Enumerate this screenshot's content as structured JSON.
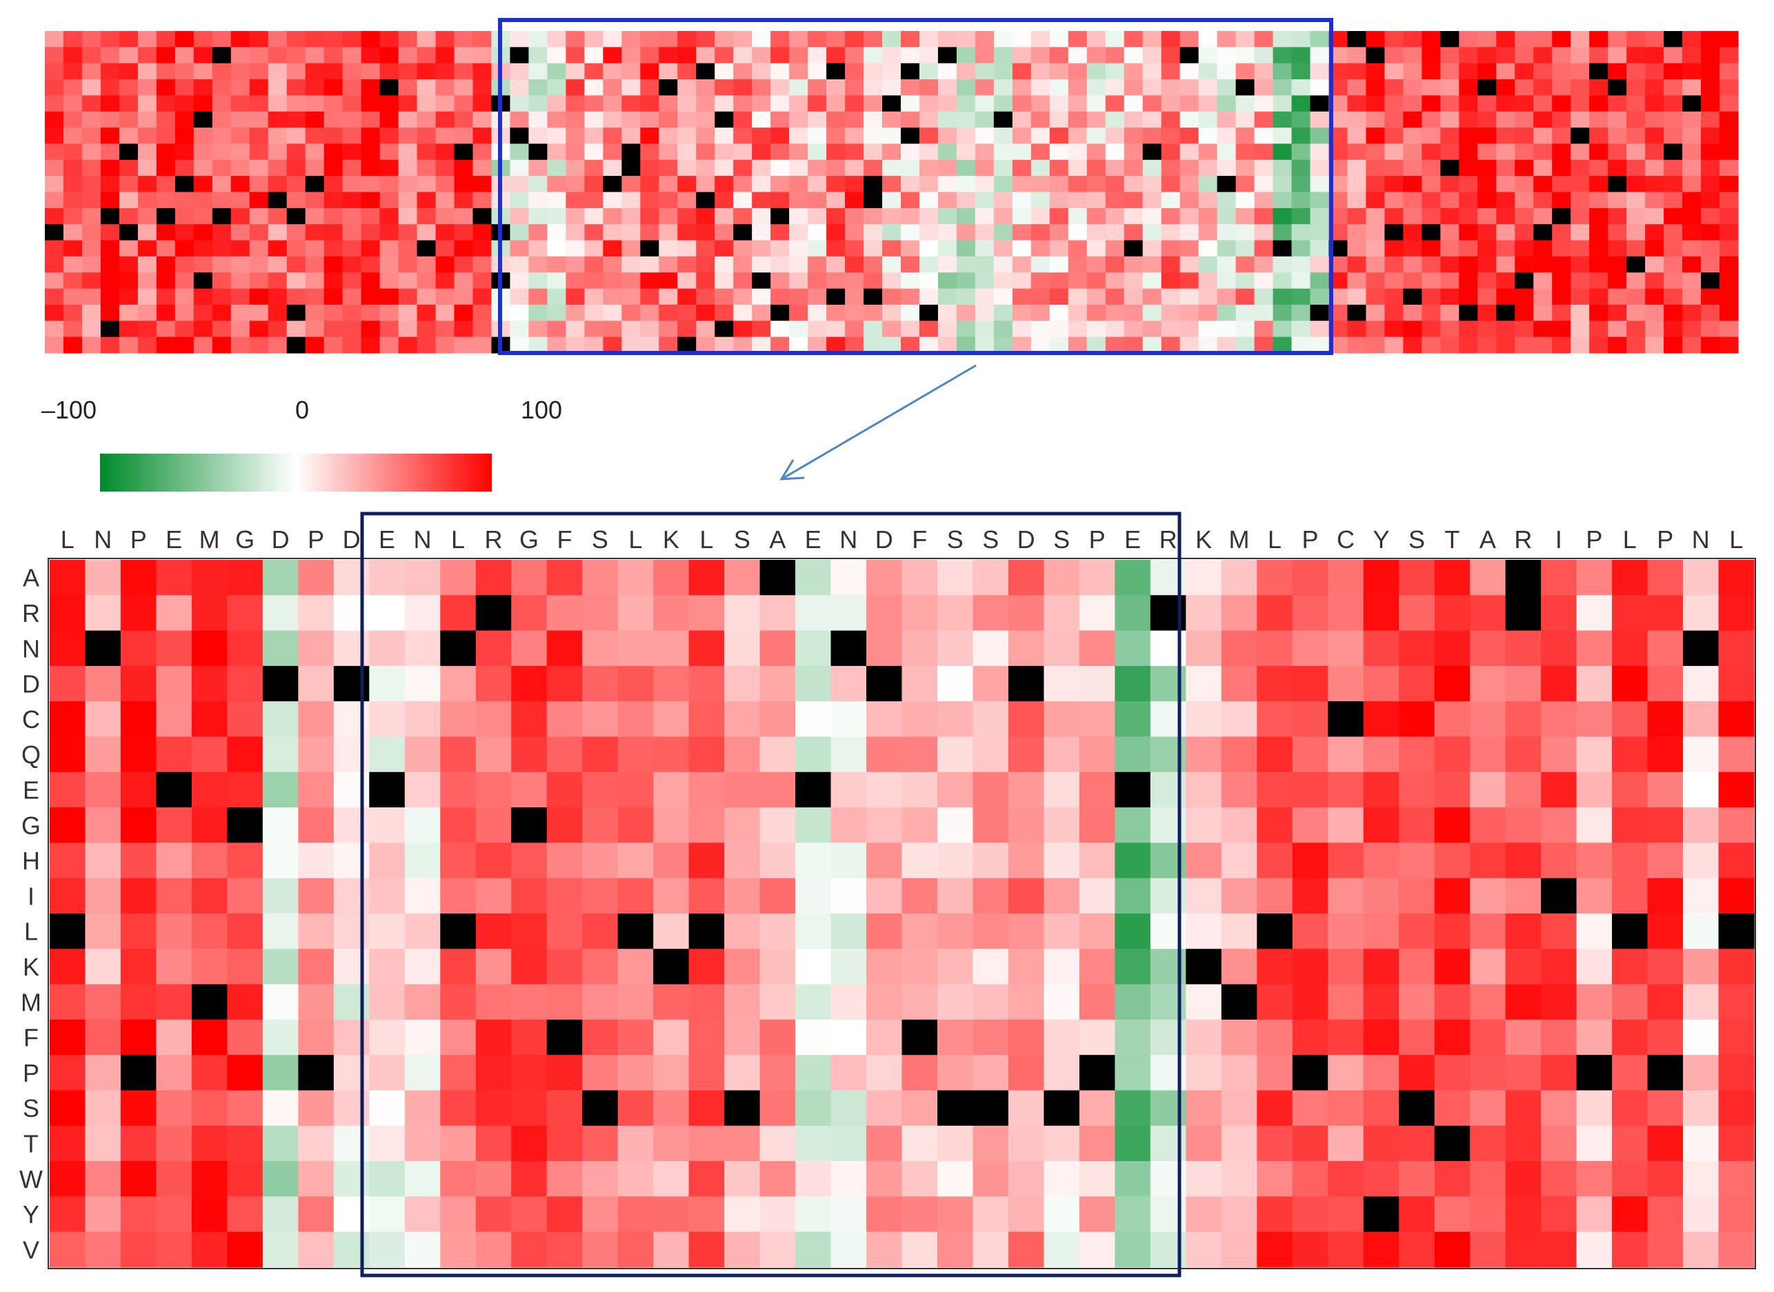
{
  "chart_data": {
    "type": "heatmap",
    "title": "",
    "xlabel": "",
    "ylabel": "",
    "color_scale": {
      "ticks": [
        "–100",
        "0",
        "100"
      ],
      "range": [
        -100,
        100
      ],
      "colors": [
        "#008a2a",
        "#ffffff",
        "#ff0000"
      ],
      "missing_color": "#000000"
    },
    "overview": {
      "rows": 20,
      "columns": 91,
      "highlight_column_range": [
        24,
        68
      ],
      "highlight_color": "#1a2fd6"
    },
    "zoom_arrow_color": "#4a86c8",
    "detail": {
      "x_tick_labels": [
        "L",
        "N",
        "P",
        "E",
        "M",
        "G",
        "D",
        "P",
        "D",
        "E",
        "N",
        "L",
        "R",
        "G",
        "F",
        "S",
        "L",
        "K",
        "L",
        "S",
        "A",
        "E",
        "N",
        "D",
        "F",
        "S",
        "S",
        "D",
        "S",
        "P",
        "E",
        "R",
        "K",
        "M",
        "L",
        "P",
        "C",
        "Y",
        "S",
        "T",
        "A",
        "R",
        "I",
        "P",
        "L",
        "P",
        "N",
        "L"
      ],
      "y_tick_labels": [
        "A",
        "R",
        "N",
        "D",
        "C",
        "Q",
        "E",
        "G",
        "H",
        "I",
        "L",
        "K",
        "M",
        "F",
        "P",
        "S",
        "T",
        "W",
        "Y",
        "V"
      ],
      "highlight_column_range": [
        9,
        31
      ],
      "highlight_color": "#0d1f5c",
      "column_mean_values": [
        85,
        40,
        90,
        55,
        78,
        80,
        -20,
        30,
        5,
        5,
        12,
        55,
        65,
        70,
        72,
        60,
        50,
        40,
        70,
        25,
        35,
        -5,
        5,
        30,
        35,
        25,
        30,
        45,
        15,
        30,
        -60,
        -25,
        25,
        40,
        70,
        72,
        55,
        72,
        75,
        80,
        55,
        70,
        70,
        30,
        75,
        75,
        20,
        75
      ],
      "missing_cells": [
        [
          0,
          20
        ],
        [
          0,
          41
        ],
        [
          1,
          12
        ],
        [
          1,
          31
        ],
        [
          1,
          41
        ],
        [
          2,
          1
        ],
        [
          2,
          11
        ],
        [
          2,
          22
        ],
        [
          2,
          46
        ],
        [
          3,
          6
        ],
        [
          3,
          8
        ],
        [
          3,
          23
        ],
        [
          3,
          27
        ],
        [
          4,
          36
        ],
        [
          6,
          3
        ],
        [
          6,
          9
        ],
        [
          6,
          21
        ],
        [
          6,
          30
        ],
        [
          7,
          5
        ],
        [
          7,
          13
        ],
        [
          9,
          42
        ],
        [
          10,
          0
        ],
        [
          10,
          11
        ],
        [
          10,
          16
        ],
        [
          10,
          18
        ],
        [
          10,
          34
        ],
        [
          10,
          44
        ],
        [
          10,
          47
        ],
        [
          11,
          17
        ],
        [
          11,
          32
        ],
        [
          12,
          4
        ],
        [
          12,
          33
        ],
        [
          13,
          14
        ],
        [
          13,
          24
        ],
        [
          14,
          2
        ],
        [
          14,
          7
        ],
        [
          14,
          29
        ],
        [
          14,
          35
        ],
        [
          14,
          43
        ],
        [
          14,
          45
        ],
        [
          15,
          15
        ],
        [
          15,
          19
        ],
        [
          15,
          25
        ],
        [
          15,
          26
        ],
        [
          15,
          28
        ],
        [
          15,
          38
        ],
        [
          16,
          39
        ],
        [
          18,
          37
        ]
      ]
    }
  }
}
